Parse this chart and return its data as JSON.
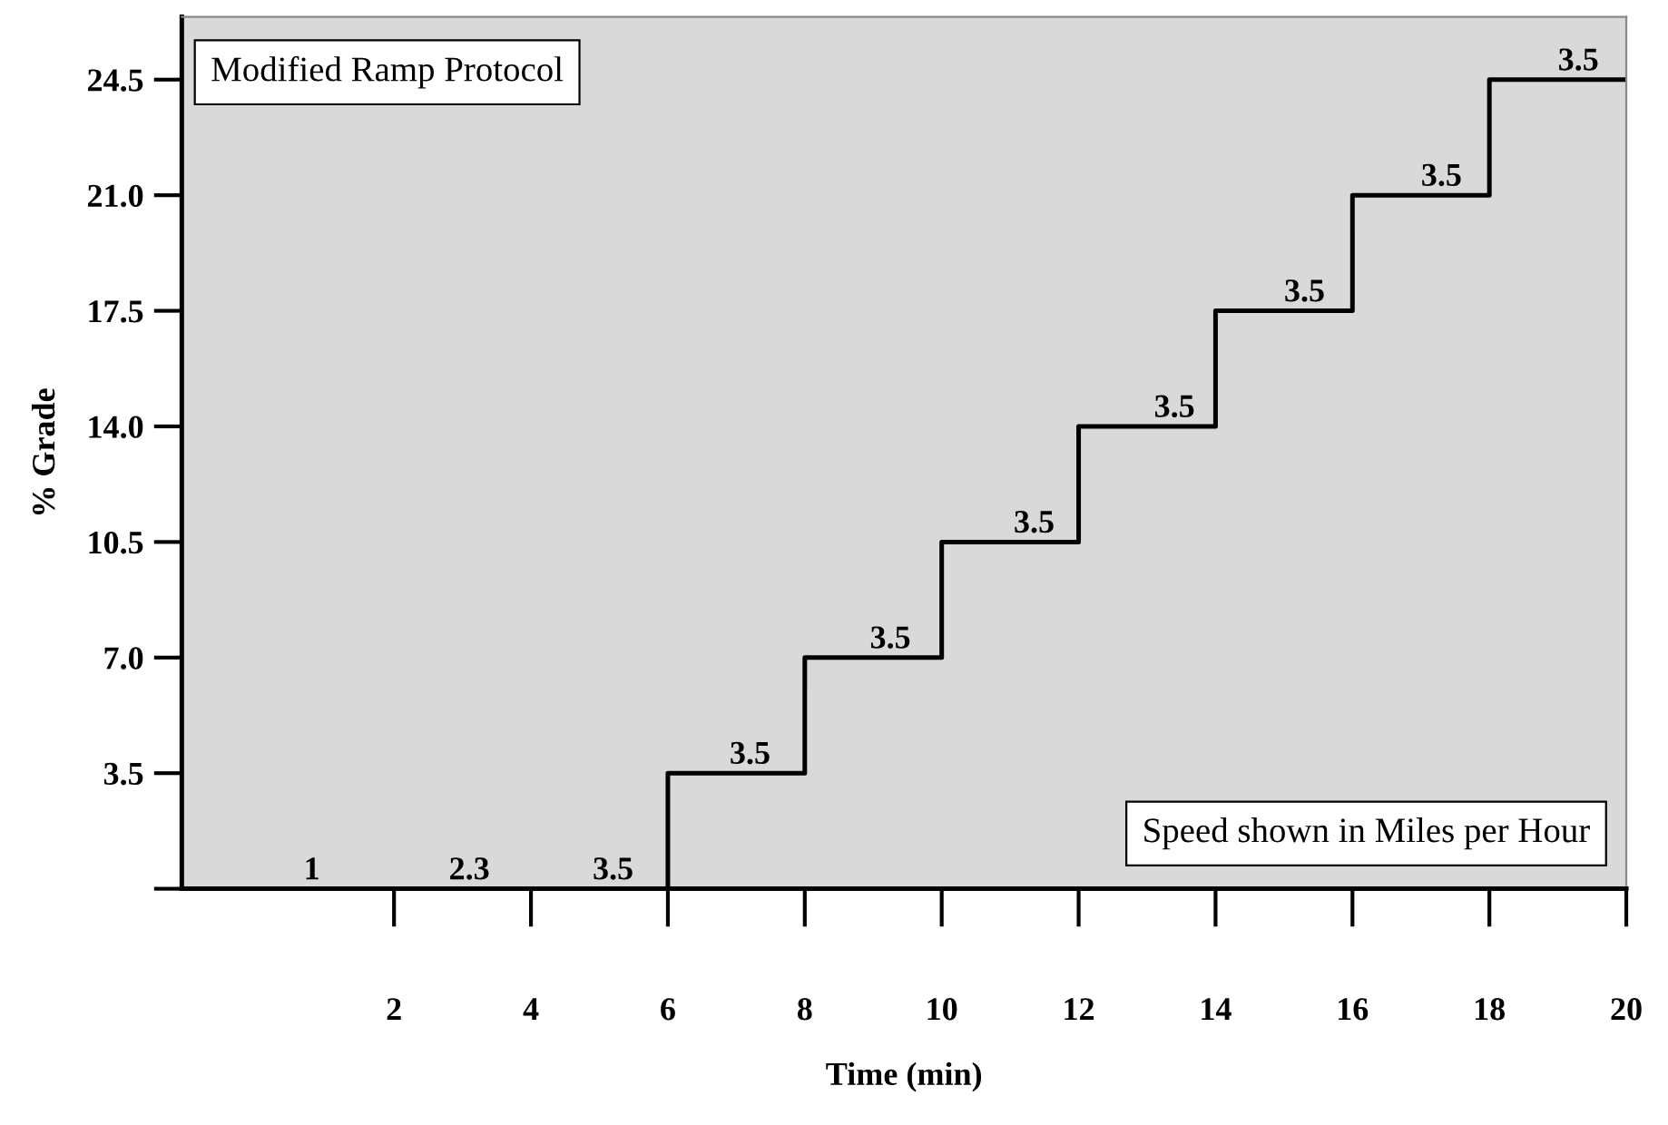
{
  "chart_data": {
    "type": "step",
    "title": "Modified Ramp Protocol",
    "xlabel": "Time (min)",
    "ylabel": "% Grade",
    "x": [
      0,
      2,
      4,
      6,
      8,
      10,
      12,
      14,
      16,
      18,
      20
    ],
    "series": [
      {
        "color": "#000000",
        "values": [
          0,
          0,
          0,
          3.5,
          7,
          10.5,
          14,
          17.5,
          21,
          24.5,
          24.5
        ]
      }
    ],
    "xlim": [
      -1.1,
      20
    ],
    "ylim": [
      0,
      26.4
    ],
    "xticks": [
      2,
      4,
      6,
      8,
      10,
      12,
      14,
      16,
      18,
      20
    ],
    "yticks": [
      {
        "value": 0,
        "label": null
      },
      3.5,
      {
        "value": 7,
        "label": "7.0"
      },
      10.5,
      {
        "value": 14,
        "label": "14.0"
      },
      17.5,
      {
        "value": 21,
        "label": "21.0"
      },
      24.5
    ],
    "grid": false,
    "marker": "none",
    "line_style": "solid",
    "annotations": [
      "Speed shown in Miles per Hour",
      {
        "text": "1",
        "x": 0.8,
        "y": 0
      },
      {
        "text": "2.3",
        "x": 3.1,
        "y": 0
      },
      {
        "text": "3.5",
        "x": 5.2,
        "y": 0
      },
      {
        "text": "3.5",
        "x": 7.2,
        "y": 3.5
      },
      {
        "text": "3.5",
        "x": 9.25,
        "y": 7
      },
      {
        "text": "3.5",
        "x": 11.35,
        "y": 10.5
      },
      {
        "text": "3.5",
        "x": 13.4,
        "y": 14
      },
      {
        "text": "3.5",
        "x": 15.3,
        "y": 17.5
      },
      {
        "text": "3.5",
        "x": 17.3,
        "y": 21
      },
      {
        "text": "3.5",
        "x": 19.3,
        "y": 24.5
      }
    ]
  }
}
